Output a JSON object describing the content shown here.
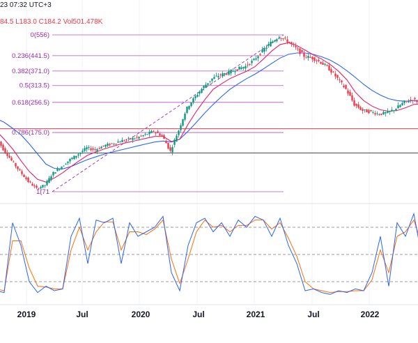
{
  "header": {
    "time_text": "23 07:32 UTC+3",
    "ohlc_text": "84.5  L183.0  C184.2  Vol501.478K"
  },
  "colors": {
    "up": "#089981",
    "down": "#f23645",
    "fib": "#9c27b0",
    "ma_fast": "#e91e63",
    "ma_slow": "#2962ff",
    "stoch_k": "#2962ff",
    "stoch_d": "#ff6d00",
    "hline_red": "#f23645",
    "hline_dark": "#434651"
  },
  "chart_data": {
    "type": "candlestick",
    "x_axis_labels": [
      "2019",
      "Jul",
      "2020",
      "Jul",
      "2021",
      "Jul",
      "2022"
    ],
    "fib_levels": [
      {
        "ratio": 0,
        "price": 556,
        "label": "0(556)"
      },
      {
        "ratio": 0.236,
        "price": 441.5,
        "label": "0.236(441.5)"
      },
      {
        "ratio": 0.382,
        "price": 371.0,
        "label": "0.382(371.0)"
      },
      {
        "ratio": 0.5,
        "price": 313.5,
        "label": "0.5(313.5)"
      },
      {
        "ratio": 0.618,
        "price": 256.5,
        "label": "0.618(256.5)"
      },
      {
        "ratio": 0.786,
        "price": 175.0,
        "label": "0.786(175.0)"
      },
      {
        "ratio": 1,
        "price": 71,
        "label": "1(71"
      }
    ],
    "horizontal_lines": [
      {
        "price": 184,
        "color": "red"
      },
      {
        "price": 132,
        "color": "dark"
      }
    ],
    "price_series": {
      "t": [
        0,
        4,
        8,
        12,
        16,
        20,
        24,
        28,
        32,
        36,
        40,
        44,
        48,
        52,
        56,
        60,
        64,
        68,
        72,
        76,
        80,
        84,
        88,
        92,
        96,
        100,
        104,
        108,
        112,
        116,
        120,
        124,
        128,
        132,
        136,
        140,
        144,
        148,
        152,
        156,
        160,
        164,
        168,
        172,
        176,
        180,
        184,
        188,
        192,
        196,
        200,
        204
      ],
      "close": [
        168,
        140,
        118,
        100,
        85,
        75,
        80,
        98,
        108,
        120,
        130,
        142,
        138,
        146,
        150,
        156,
        160,
        163,
        170,
        178,
        168,
        135,
        180,
        240,
        275,
        310,
        340,
        355,
        365,
        380,
        392,
        420,
        465,
        510,
        545,
        520,
        480,
        440,
        430,
        410,
        380,
        340,
        300,
        250,
        232,
        228,
        222,
        226,
        238,
        258,
        266,
        254
      ],
      "note": "approximate weekly closes read from chart"
    },
    "ma_fast": [
      180,
      160,
      140,
      118,
      100,
      88,
      84,
      90,
      98,
      108,
      118,
      128,
      134,
      140,
      145,
      150,
      154,
      158,
      162,
      166,
      166,
      155,
      160,
      195,
      230,
      265,
      300,
      320,
      340,
      355,
      370,
      390,
      425,
      465,
      500,
      510,
      495,
      470,
      445,
      425,
      400,
      370,
      335,
      290,
      262,
      245,
      234,
      230,
      232,
      240,
      250,
      252
    ],
    "ma_slow": [
      210,
      200,
      185,
      170,
      150,
      130,
      112,
      105,
      104,
      108,
      114,
      120,
      125,
      130,
      134,
      138,
      142,
      146,
      150,
      154,
      156,
      154,
      160,
      178,
      200,
      225,
      250,
      275,
      300,
      320,
      340,
      358,
      380,
      405,
      430,
      448,
      455,
      455,
      448,
      436,
      420,
      398,
      372,
      345,
      318,
      296,
      280,
      268,
      262,
      260,
      262,
      262
    ],
    "price_ylim": [
      60,
      580
    ],
    "stochastic": {
      "ylim": [
        0,
        100
      ],
      "levels": [
        80,
        50,
        20
      ],
      "k": [
        10,
        8,
        85,
        60,
        20,
        8,
        15,
        10,
        12,
        70,
        90,
        40,
        88,
        85,
        90,
        40,
        85,
        70,
        75,
        80,
        92,
        30,
        10,
        60,
        85,
        90,
        75,
        85,
        70,
        88,
        80,
        92,
        88,
        70,
        90,
        60,
        40,
        10,
        12,
        8,
        6,
        10,
        8,
        12,
        10,
        30,
        70,
        15,
        85,
        70,
        95,
        45
      ],
      "d": [
        12,
        10,
        65,
        65,
        35,
        15,
        14,
        12,
        12,
        55,
        80,
        55,
        75,
        86,
        86,
        55,
        75,
        75,
        72,
        78,
        88,
        45,
        18,
        45,
        75,
        88,
        80,
        82,
        75,
        82,
        82,
        88,
        88,
        78,
        85,
        68,
        48,
        20,
        12,
        10,
        8,
        9,
        9,
        10,
        10,
        22,
        55,
        30,
        70,
        75,
        88,
        60
      ]
    }
  }
}
